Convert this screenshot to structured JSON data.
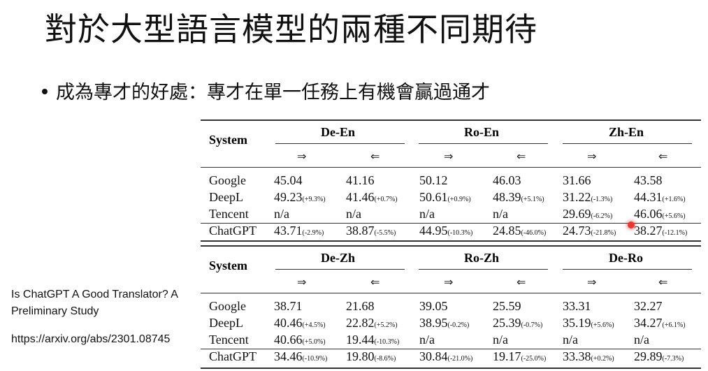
{
  "slide": {
    "title": "對於大型語言模型的兩種不同期待",
    "bullet": "成為專才的好處：專才在單一任務上有機會贏過通才",
    "reference_title": "Is ChatGPT A Good Translator? A Preliminary Study",
    "reference_url": "https://arxiv.org/abs/2301.08745"
  },
  "tables": [
    {
      "system_label": "System",
      "pairs": [
        "De-En",
        "Ro-En",
        "Zh-En"
      ],
      "arrows": [
        "⇒",
        "⇐",
        "⇒",
        "⇐",
        "⇒",
        "⇐"
      ],
      "rows": [
        {
          "system": "Google",
          "cells": [
            [
              "45.04",
              ""
            ],
            [
              "41.16",
              ""
            ],
            [
              "50.12",
              ""
            ],
            [
              "46.03",
              ""
            ],
            [
              "31.66",
              ""
            ],
            [
              "43.58",
              ""
            ]
          ]
        },
        {
          "system": "DeepL",
          "cells": [
            [
              "49.23",
              "(+9.3%)"
            ],
            [
              "41.46",
              "(+0.7%)"
            ],
            [
              "50.61",
              "(+0.9%)"
            ],
            [
              "48.39",
              "(+5.1%)"
            ],
            [
              "31.22",
              "(-1.3%)"
            ],
            [
              "44.31",
              "(+1.6%)"
            ]
          ]
        },
        {
          "system": "Tencent",
          "cells": [
            [
              "n/a",
              ""
            ],
            [
              "n/a",
              ""
            ],
            [
              "n/a",
              ""
            ],
            [
              "n/a",
              ""
            ],
            [
              "29.69",
              "(-6.2%)"
            ],
            [
              "46.06",
              "(+5.6%)"
            ]
          ]
        },
        {
          "system": "ChatGPT",
          "cells": [
            [
              "43.71",
              "(-2.9%)"
            ],
            [
              "38.87",
              "(-5.5%)"
            ],
            [
              "44.95",
              "(-10.3%)"
            ],
            [
              "24.85",
              "(-46.0%)"
            ],
            [
              "24.73",
              "(-21.8%)"
            ],
            [
              "38.27",
              "(-12.1%)"
            ]
          ]
        }
      ]
    },
    {
      "system_label": "System",
      "pairs": [
        "De-Zh",
        "Ro-Zh",
        "De-Ro"
      ],
      "arrows": [
        "⇒",
        "⇐",
        "⇒",
        "⇐",
        "⇒",
        "⇐"
      ],
      "rows": [
        {
          "system": "Google",
          "cells": [
            [
              "38.71",
              ""
            ],
            [
              "21.68",
              ""
            ],
            [
              "39.05",
              ""
            ],
            [
              "25.59",
              ""
            ],
            [
              "33.31",
              ""
            ],
            [
              "32.27",
              ""
            ]
          ]
        },
        {
          "system": "DeepL",
          "cells": [
            [
              "40.46",
              "(+4.5%)"
            ],
            [
              "22.82",
              "(+5.2%)"
            ],
            [
              "38.95",
              "(-0.2%)"
            ],
            [
              "25.39",
              "(-0.7%)"
            ],
            [
              "35.19",
              "(+5.6%)"
            ],
            [
              "34.27",
              "(+6.1%)"
            ]
          ]
        },
        {
          "system": "Tencent",
          "cells": [
            [
              "40.66",
              "(+5.0%)"
            ],
            [
              "19.44",
              "(-10.3%)"
            ],
            [
              "n/a",
              ""
            ],
            [
              "n/a",
              ""
            ],
            [
              "n/a",
              ""
            ],
            [
              "n/a",
              ""
            ]
          ]
        },
        {
          "system": "ChatGPT",
          "cells": [
            [
              "34.46",
              "(-10.9%)"
            ],
            [
              "19.80",
              "(-8.6%)"
            ],
            [
              "30.84",
              "(-21.0%)"
            ],
            [
              "19.17",
              "(-25.0%)"
            ],
            [
              "33.38",
              "(+0.2%)"
            ],
            [
              "29.89",
              "(-7.3%)"
            ]
          ]
        }
      ]
    }
  ]
}
